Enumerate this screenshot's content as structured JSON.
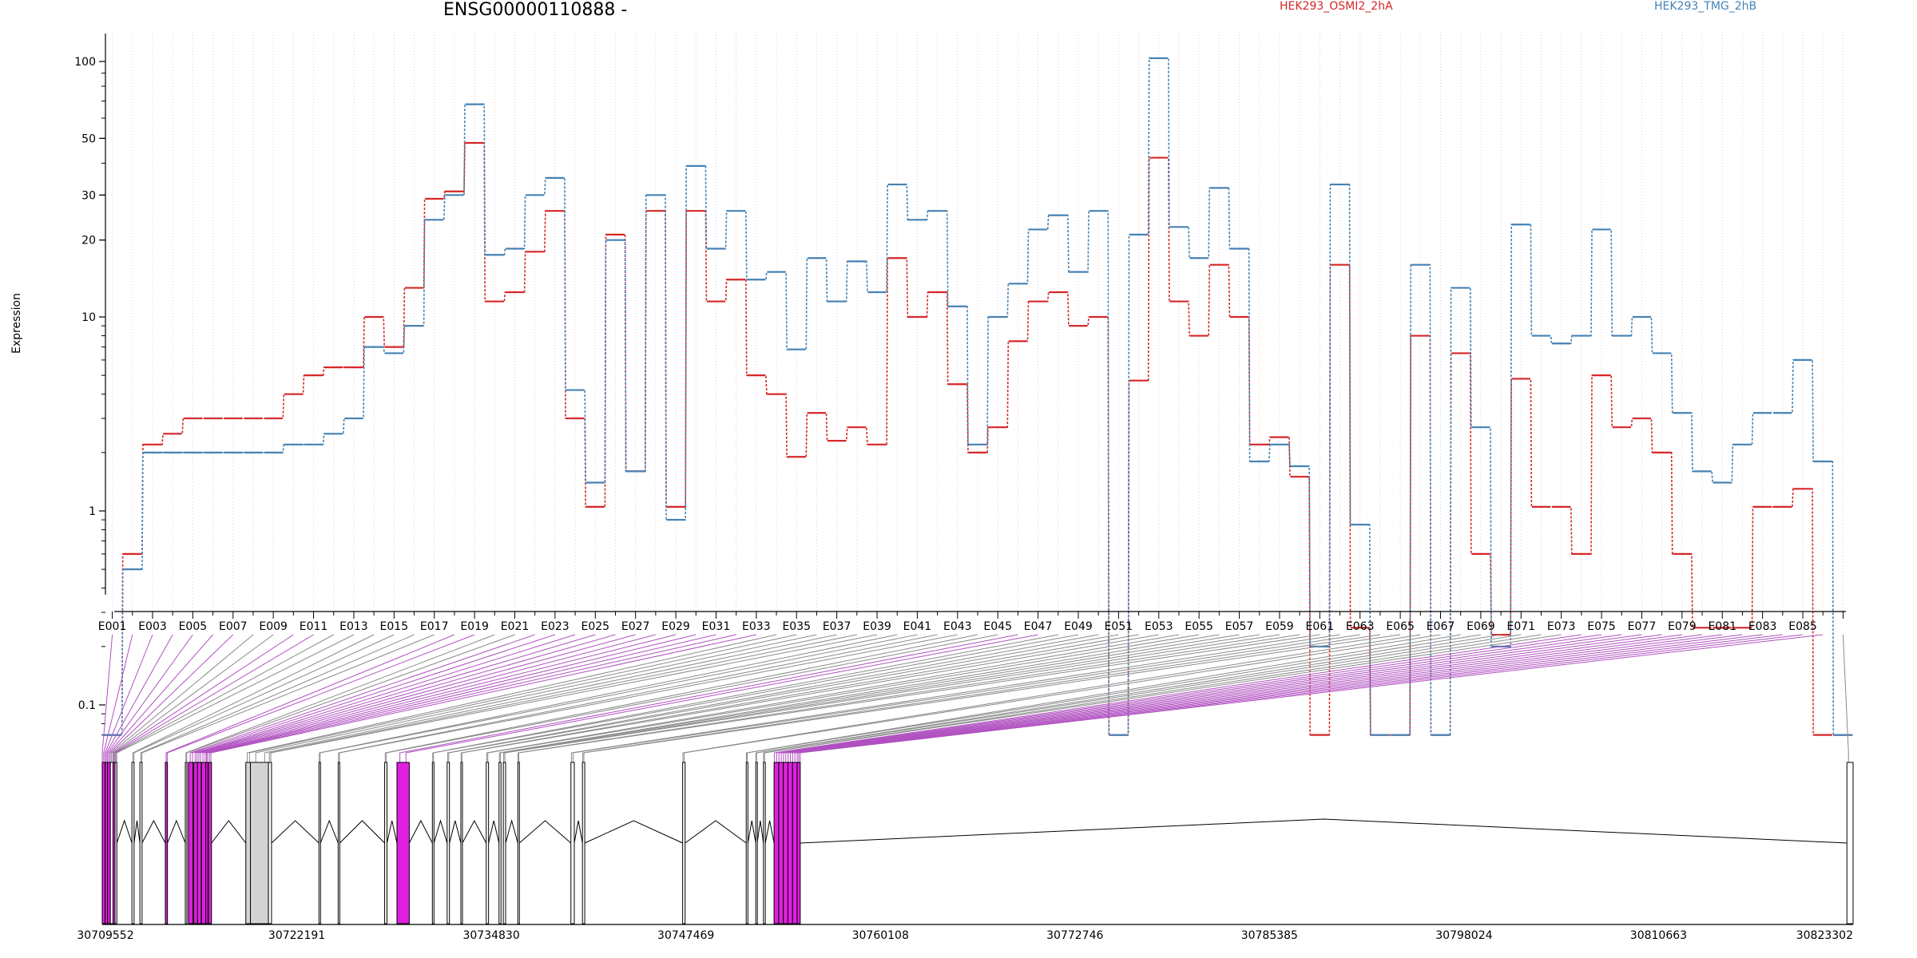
{
  "chart_data": {
    "type": "line",
    "title": "ENSG00000110888 -",
    "ylabel": "Expression",
    "y_scale": "log",
    "y_ticks": [
      "0.1",
      "1",
      "10",
      "20",
      "30",
      "50",
      "100"
    ],
    "grid": false,
    "legend_placement": "top",
    "exon_tick_labels": [
      "E001",
      "E003",
      "E005",
      "E007",
      "E009",
      "E011",
      "E013",
      "E015",
      "E017",
      "E019",
      "E021",
      "E023",
      "E025",
      "E027",
      "E029",
      "E031",
      "E033",
      "E035",
      "E037",
      "E039",
      "E041",
      "E043",
      "E045",
      "E047",
      "E049",
      "E051",
      "E053",
      "E055",
      "E057",
      "E059",
      "E061",
      "E063",
      "E065",
      "E067",
      "E069",
      "E071",
      "E073",
      "E075",
      "E077",
      "E079",
      "E081",
      "E083",
      "E085"
    ],
    "series": [
      {
        "name": "HEK293_OSMI2_2hA",
        "color": "#d62728",
        "values": [
          0.07,
          0.6,
          2.2,
          2.5,
          3,
          3,
          3,
          3,
          3,
          4,
          5,
          5.5,
          5.5,
          10,
          7,
          13,
          29,
          31,
          48,
          11.5,
          12.5,
          18,
          26,
          3,
          1.05,
          21,
          1.6,
          26,
          1.05,
          26,
          11.5,
          14,
          5,
          4,
          1.9,
          3.2,
          2.3,
          2.7,
          2.2,
          17,
          10,
          12.5,
          4.5,
          2,
          2.7,
          7.5,
          11.5,
          12.5,
          9,
          10,
          0.07,
          4.7,
          42,
          11.5,
          8,
          16,
          10,
          2.2,
          2.4,
          1.5,
          0.07,
          16,
          0.25,
          0.07,
          0.07,
          8,
          0.07,
          6.5,
          0.6,
          0.23,
          4.8,
          1.05,
          1.05,
          0.6,
          5,
          2.7,
          3,
          2,
          0.6,
          0.25,
          0.25,
          0.25,
          1.05,
          1.05,
          1.3,
          0.07,
          0.07
        ]
      },
      {
        "name": "HEK293_TMG_2hB",
        "color": "#4682b4",
        "values": [
          0.07,
          0.5,
          2,
          2,
          2,
          2,
          2,
          2,
          2,
          2.2,
          2.2,
          2.5,
          3,
          7,
          6.5,
          9,
          24,
          30,
          68,
          17.5,
          18.5,
          30,
          35,
          4.2,
          1.4,
          20,
          1.6,
          30,
          0.9,
          39,
          18.5,
          26,
          14,
          15,
          6.8,
          17,
          11.5,
          16.5,
          12.5,
          33,
          24,
          26,
          11,
          2.2,
          10,
          13.5,
          22,
          25,
          15,
          26,
          0.07,
          21,
          103,
          22.5,
          17,
          32,
          18.5,
          1.8,
          2.2,
          1.7,
          0.2,
          33,
          0.85,
          0.07,
          0.07,
          16,
          0.07,
          13,
          2.7,
          0.2,
          23,
          8,
          7.3,
          8,
          22,
          8,
          10,
          6.5,
          3.2,
          1.6,
          1.4,
          2.2,
          3.2,
          3.2,
          6,
          1.8,
          0.07
        ]
      }
    ],
    "genomic_axis_labels": [
      "30709552",
      "30722191",
      "30734830",
      "30747469",
      "30760108",
      "30772746",
      "30785385",
      "30798024",
      "30810663",
      "30823302"
    ],
    "genomic_range": [
      30709552,
      30823302
    ],
    "exon_highlight_color": "#e020e0",
    "exon_default_fill": "#d3d3d3"
  }
}
